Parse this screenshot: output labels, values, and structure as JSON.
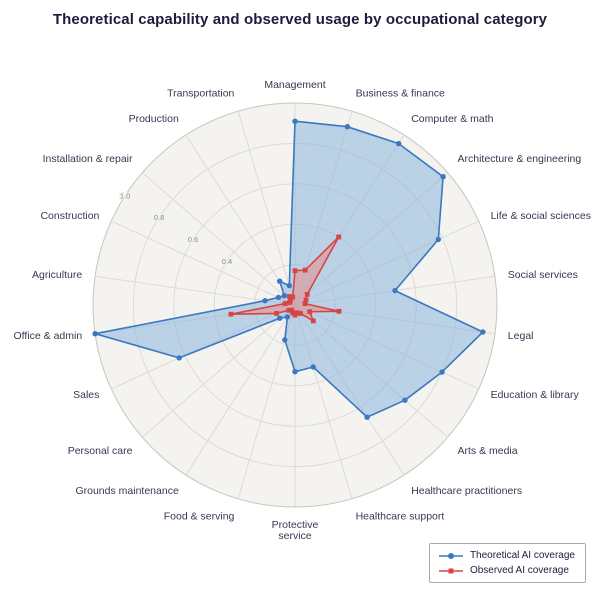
{
  "title": "Theoretical capability and observed usage by occupational category",
  "chart_data": {
    "type": "radar",
    "title": "Theoretical capability and observed usage by occupational category",
    "categories": [
      "Management",
      "Business & finance",
      "Computer & math",
      "Architecture & engineering",
      "Life & social sciences",
      "Social services",
      "Legal",
      "Education & library",
      "Arts & media",
      "Healthcare practitioners",
      "Healthcare support",
      "Protective service",
      "Food & serving",
      "Grounds maintenance",
      "Personal care",
      "Sales",
      "Office & admin",
      "Agriculture",
      "Construction",
      "Installation & repair",
      "Production",
      "Transportation"
    ],
    "series": [
      {
        "name": "Theoretical AI coverage",
        "color": "#3a78c2",
        "fill": "#8cb4dd",
        "marker": "circle",
        "values": [
          0.91,
          0.92,
          0.95,
          0.97,
          0.78,
          0.5,
          0.94,
          0.8,
          0.72,
          0.66,
          0.32,
          0.33,
          0.18,
          0.07,
          0.1,
          0.63,
          1.0,
          0.15,
          0.09,
          0.07,
          0.14,
          0.1
        ]
      },
      {
        "name": "Observed AI coverage",
        "color": "#d64545",
        "fill": "#e89090",
        "marker": "square",
        "values": [
          0.17,
          0.18,
          0.4,
          0.08,
          0.06,
          0.05,
          0.22,
          0.08,
          0.12,
          0.05,
          0.04,
          0.05,
          0.04,
          0.03,
          0.04,
          0.1,
          0.32,
          0.05,
          0.03,
          0.03,
          0.05,
          0.04
        ]
      }
    ],
    "radial_ticks": [
      0.4,
      0.6,
      0.8,
      1.0
    ],
    "rmin": 0,
    "rmax": 1.0,
    "grid": true,
    "legend_position": "bottom-right"
  }
}
